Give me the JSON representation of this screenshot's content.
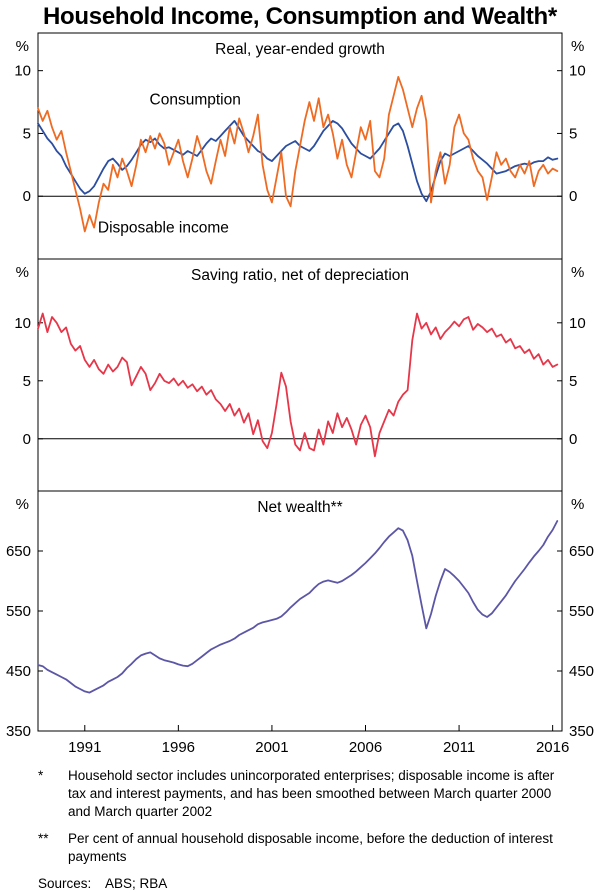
{
  "page": {
    "title": "Household Income, Consumption and Wealth*"
  },
  "chart_data": {
    "type": "line",
    "x_start": 1988.5,
    "x_step": 0.25,
    "xlim": [
      1988.5,
      2016.5
    ],
    "xticks": [
      1991,
      1996,
      2001,
      2006,
      2011,
      2016
    ],
    "panels": [
      {
        "title": "Real, year-ended growth",
        "unit": "%",
        "ylim": [
          -5,
          13
        ],
        "yticks": [
          0,
          5,
          10
        ],
        "zero_line": true,
        "series": [
          {
            "name": "Consumption",
            "color": "#2b4ea0",
            "label_pos": {
              "x": 1996.9,
              "y": 7.3
            },
            "values": [
              5.8,
              5.2,
              4.6,
              4.2,
              3.6,
              3.2,
              2.4,
              1.8,
              1.2,
              0.6,
              0.2,
              0.4,
              0.8,
              1.5,
              2.2,
              2.8,
              3.0,
              2.6,
              2.1,
              2.4,
              2.9,
              3.5,
              4.1,
              4.5,
              4.3,
              4.6,
              4.1,
              3.8,
              3.9,
              3.7,
              3.5,
              3.3,
              3.6,
              3.4,
              3.2,
              3.7,
              4.2,
              4.6,
              4.4,
              4.8,
              5.2,
              5.6,
              6.0,
              5.4,
              4.8,
              4.4,
              4.0,
              3.6,
              3.4,
              3.0,
              2.8,
              3.2,
              3.6,
              4.0,
              4.2,
              4.4,
              4.0,
              3.8,
              3.6,
              4.0,
              4.6,
              5.2,
              5.6,
              6.0,
              5.8,
              5.4,
              4.8,
              4.2,
              3.8,
              3.4,
              3.2,
              3.0,
              3.4,
              3.8,
              4.4,
              5.0,
              5.6,
              5.8,
              5.2,
              4.0,
              2.6,
              1.2,
              0.2,
              -0.4,
              0.4,
              1.6,
              2.8,
              3.4,
              3.2,
              3.4,
              3.6,
              3.8,
              4.0,
              3.6,
              3.2,
              2.9,
              2.6,
              2.2,
              1.8,
              1.9,
              2.0,
              2.2,
              2.4,
              2.5,
              2.6,
              2.5,
              2.7,
              2.8,
              2.8,
              3.1,
              2.9,
              3.0
            ]
          },
          {
            "name": "Disposable income",
            "color": "#ee6b23",
            "label_pos": {
              "x": 1995.2,
              "y": -2.9
            },
            "values": [
              7.0,
              6.0,
              6.8,
              5.5,
              4.5,
              5.2,
              3.5,
              2.0,
              0.5,
              -1.0,
              -2.8,
              -1.5,
              -2.5,
              -0.5,
              1.0,
              0.5,
              2.5,
              1.5,
              3.0,
              2.0,
              0.8,
              2.5,
              4.5,
              3.5,
              4.8,
              3.8,
              5.0,
              4.2,
              2.5,
              3.5,
              4.5,
              2.8,
              1.5,
              3.0,
              4.8,
              3.6,
              2.0,
              1.0,
              2.8,
              4.5,
              3.2,
              5.5,
              4.2,
              6.2,
              5.0,
              3.5,
              4.8,
              6.5,
              2.5,
              0.5,
              -0.5,
              1.5,
              3.5,
              0.0,
              -0.8,
              2.0,
              4.0,
              6.0,
              7.5,
              6.0,
              7.8,
              5.5,
              6.5,
              5.0,
              3.0,
              4.5,
              2.5,
              1.5,
              3.5,
              5.5,
              4.5,
              6.0,
              2.0,
              1.5,
              3.0,
              6.5,
              8.0,
              9.5,
              8.5,
              7.0,
              5.5,
              7.0,
              8.0,
              6.0,
              -0.5,
              2.0,
              3.5,
              1.0,
              2.5,
              5.5,
              6.5,
              5.0,
              4.5,
              3.0,
              2.0,
              1.5,
              -0.3,
              1.5,
              3.5,
              2.5,
              3.0,
              2.0,
              1.5,
              2.5,
              1.8,
              2.8,
              0.8,
              2.0,
              2.5,
              1.8,
              2.2,
              2.0
            ]
          }
        ]
      },
      {
        "title": "Saving ratio, net of depreciation",
        "unit": "%",
        "ylim": [
          -4.5,
          15.5
        ],
        "yticks": [
          0,
          5,
          10
        ],
        "zero_line": true,
        "series": [
          {
            "name": "Saving ratio",
            "color": "#e6374a",
            "values": [
              9.5,
              10.8,
              9.2,
              10.5,
              10.0,
              9.2,
              9.6,
              8.2,
              7.6,
              8.0,
              6.8,
              6.2,
              6.8,
              6.0,
              5.6,
              6.4,
              5.8,
              6.2,
              7.0,
              6.6,
              4.6,
              5.4,
              6.2,
              5.6,
              4.2,
              4.8,
              5.6,
              5.0,
              4.8,
              5.2,
              4.6,
              5.0,
              4.4,
              4.7,
              4.1,
              4.5,
              3.8,
              4.2,
              3.4,
              3.0,
              2.4,
              3.0,
              2.0,
              2.6,
              1.4,
              2.2,
              0.4,
              1.6,
              -0.2,
              -0.8,
              0.5,
              3.0,
              5.7,
              4.5,
              1.5,
              -0.5,
              -1.0,
              0.5,
              -0.8,
              -1.0,
              0.8,
              -0.5,
              1.5,
              0.5,
              2.2,
              1.0,
              1.8,
              0.8,
              -0.5,
              1.2,
              2.0,
              1.0,
              -1.5,
              0.5,
              1.5,
              2.5,
              2.0,
              3.2,
              3.8,
              4.2,
              8.5,
              10.8,
              9.5,
              10.0,
              9.0,
              9.6,
              8.6,
              9.2,
              9.6,
              10.1,
              9.7,
              10.3,
              10.5,
              9.4,
              9.9,
              9.6,
              9.2,
              9.5,
              8.8,
              9.0,
              8.3,
              8.6,
              7.8,
              8.0,
              7.4,
              7.7,
              6.9,
              7.3,
              6.4,
              6.8,
              6.2,
              6.4
            ]
          }
        ]
      },
      {
        "title": "Net wealth**",
        "unit": "%",
        "ylim": [
          350,
          750
        ],
        "yticks": [
          350,
          450,
          550,
          650
        ],
        "zero_line": false,
        "series": [
          {
            "name": "Net wealth",
            "color": "#5c56a6",
            "values": [
              460,
              458,
              452,
              448,
              444,
              440,
              436,
              430,
              424,
              420,
              416,
              414,
              418,
              422,
              426,
              432,
              436,
              440,
              446,
              455,
              462,
              470,
              476,
              479,
              481,
              476,
              471,
              468,
              466,
              464,
              461,
              459,
              458,
              462,
              468,
              474,
              480,
              486,
              490,
              494,
              497,
              500,
              504,
              510,
              514,
              518,
              522,
              528,
              531,
              533,
              535,
              537,
              541,
              548,
              556,
              563,
              570,
              575,
              580,
              588,
              595,
              599,
              601,
              599,
              597,
              600,
              605,
              610,
              616,
              623,
              630,
              638,
              646,
              655,
              665,
              674,
              681,
              688,
              684,
              668,
              642,
              600,
              560,
              521,
              545,
              575,
              600,
              620,
              615,
              608,
              600,
              590,
              580,
              565,
              552,
              544,
              540,
              546,
              556,
              566,
              576,
              588,
              600,
              610,
              620,
              631,
              641,
              650,
              660,
              674,
              685,
              700
            ]
          }
        ]
      }
    ]
  },
  "footnotes": [
    {
      "marker": "*",
      "text": "Household sector includes unincorporated enterprises; disposable income is after tax and interest payments, and has been smoothed between March quarter 2000 and March quarter 2002"
    },
    {
      "marker": "**",
      "text": "Per cent of annual household disposable income, before the deduction of interest payments"
    }
  ],
  "sources": {
    "label": "Sources:",
    "text": "ABS; RBA"
  }
}
